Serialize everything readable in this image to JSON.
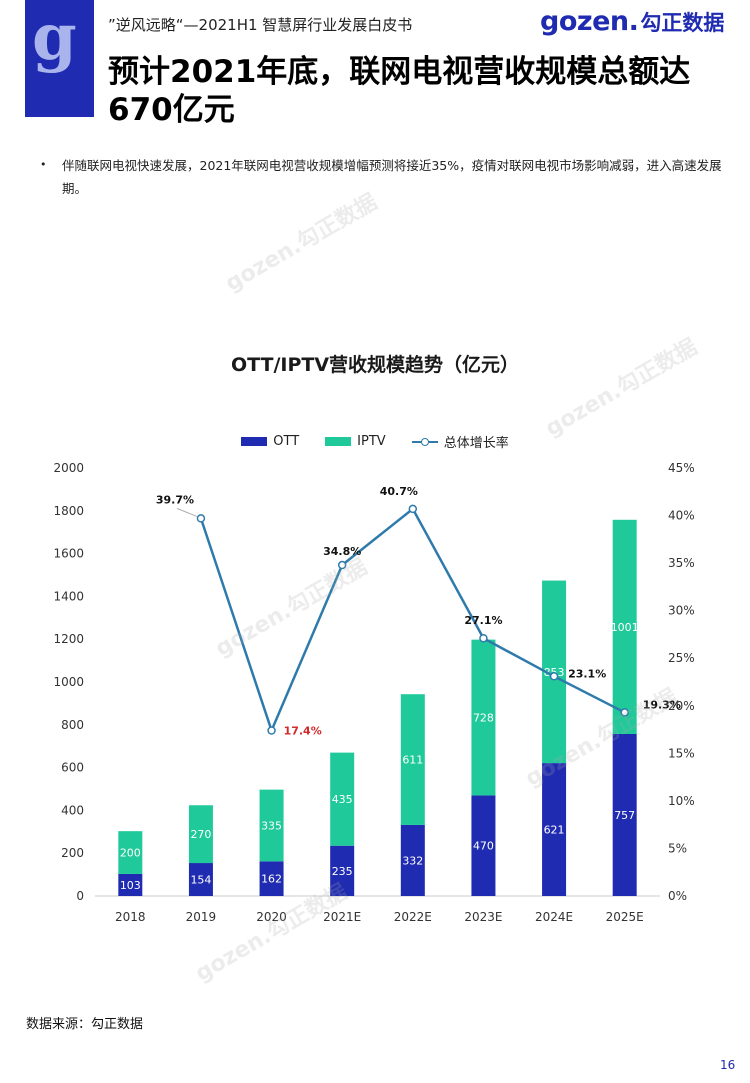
{
  "header": {
    "subtitle": "”逆风远略“—2021H1 智慧屏行业发展白皮书",
    "brand_en": "gozen.",
    "brand_cn": "勾正数据",
    "side_logo_letter": "g"
  },
  "title": "预计2021年底，联网电视营收规模总额达670亿元",
  "bullet": "伴随联网电视快速发展，2021年联网电视营收规模增幅预测将接近35%，疫情对联网电视市场影响减弱，进入高速发展期。",
  "watermark": "gozen.勾正数据",
  "colors": {
    "ott": "#1f2bb0",
    "iptv": "#20c99a",
    "line": "#2e7bab",
    "highlight_label": "#d12b2b",
    "brand": "#1f2bb0"
  },
  "chart_data": {
    "type": "bar",
    "stacked": true,
    "title": "OTT/IPTV营收规模趋势（亿元）",
    "categories": [
      "2018",
      "2019",
      "2020",
      "2021E",
      "2022E",
      "2023E",
      "2024E",
      "2025E"
    ],
    "series": [
      {
        "name": "OTT",
        "values": [
          103,
          154,
          162,
          235,
          332,
          470,
          621,
          757
        ]
      },
      {
        "name": "IPTV",
        "values": [
          200,
          270,
          335,
          435,
          611,
          728,
          853,
          1001
        ]
      }
    ],
    "line_series": {
      "name": "总体增长率",
      "axis": "right",
      "values": [
        null,
        39.7,
        17.4,
        34.8,
        40.7,
        27.1,
        23.1,
        19.3
      ],
      "labels": [
        "",
        "39.7%",
        "17.4%",
        "34.8%",
        "40.7%",
        "27.1%",
        "23.1%",
        "19.3%"
      ]
    },
    "ylim": [
      0,
      2000
    ],
    "yticks": [
      "0",
      "200",
      "400",
      "600",
      "800",
      "1000",
      "1200",
      "1400",
      "1600",
      "1800",
      "2000"
    ],
    "y2lim": [
      0,
      45
    ],
    "y2ticks": [
      "0%",
      "5%",
      "10%",
      "15%",
      "20%",
      "25%",
      "30%",
      "35%",
      "40%",
      "45%"
    ],
    "legend_position": "top-center",
    "grid": false
  },
  "source": "数据来源：勾正数据",
  "page_number": "16"
}
